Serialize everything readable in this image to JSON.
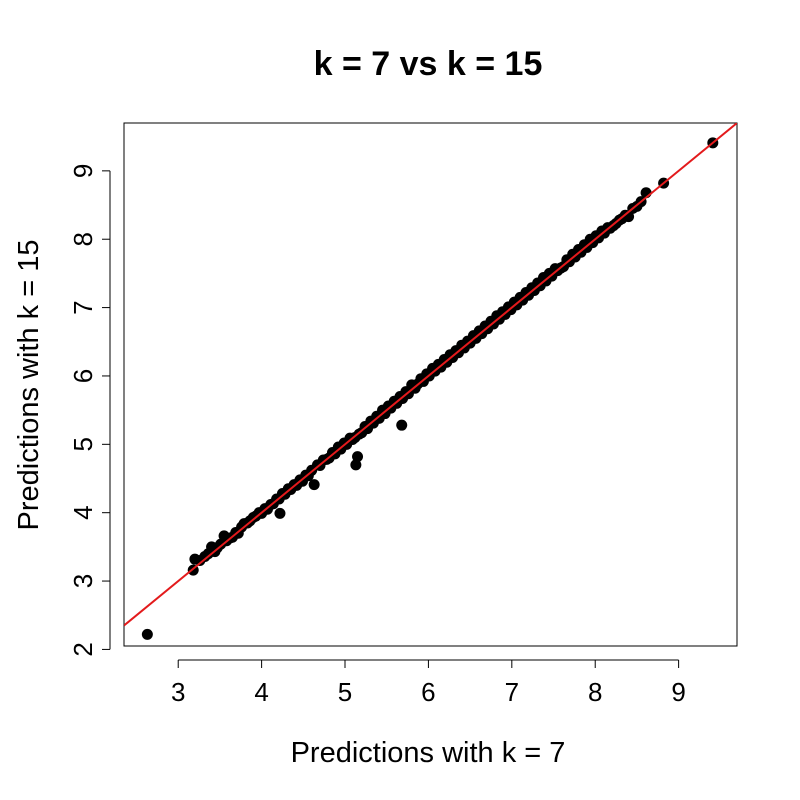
{
  "chart_data": {
    "type": "scatter",
    "title": "k = 7 vs k = 15",
    "xlabel": "Predictions with k = 7",
    "ylabel": "Predictions with k = 15",
    "xlim": [
      2.35,
      9.7
    ],
    "ylim": [
      2.05,
      9.7
    ],
    "x_ticks": [
      3,
      4,
      5,
      6,
      7,
      8,
      9
    ],
    "y_ticks": [
      2,
      3,
      4,
      5,
      6,
      7,
      8,
      9
    ],
    "x_tick_labels": [
      "3",
      "4",
      "5",
      "6",
      "7",
      "8",
      "9"
    ],
    "y_tick_labels": [
      "2",
      "3",
      "4",
      "5",
      "6",
      "7",
      "8",
      "9"
    ],
    "grid": false,
    "point_color": "#000000",
    "reference_line": {
      "slope": 1,
      "intercept": 0,
      "color": "#e31a1c"
    },
    "series": [
      {
        "x": [
          2.63,
          3.18,
          3.2,
          3.26,
          3.32,
          3.36,
          3.4,
          3.44,
          3.47,
          3.51,
          3.55,
          3.58,
          3.62,
          3.65,
          3.69,
          3.72,
          3.76,
          3.79,
          3.83,
          3.86,
          3.9,
          3.93,
          3.97,
          4.0,
          4.04,
          4.07,
          4.11,
          4.14,
          4.18,
          4.21,
          4.22,
          4.25,
          4.28,
          4.32,
          4.35,
          4.39,
          4.42,
          4.46,
          4.49,
          4.53,
          4.56,
          4.6,
          4.63,
          4.67,
          4.7,
          4.74,
          4.78,
          4.81,
          4.85,
          4.88,
          4.92,
          4.95,
          4.99,
          5.02,
          5.06,
          5.09,
          5.12,
          5.13,
          5.15,
          5.17,
          5.2,
          5.24,
          5.27,
          5.31,
          5.34,
          5.38,
          5.41,
          5.45,
          5.48,
          5.52,
          5.55,
          5.59,
          5.62,
          5.66,
          5.68,
          5.69,
          5.73,
          5.76,
          5.8,
          5.84,
          5.87,
          5.91,
          5.94,
          5.98,
          6.01,
          6.05,
          6.08,
          6.12,
          6.15,
          6.19,
          6.22,
          6.26,
          6.29,
          6.33,
          6.36,
          6.4,
          6.43,
          6.47,
          6.5,
          6.54,
          6.57,
          6.61,
          6.64,
          6.68,
          6.71,
          6.75,
          6.78,
          6.82,
          6.85,
          6.89,
          6.92,
          6.96,
          6.99,
          7.03,
          7.06,
          7.1,
          7.13,
          7.17,
          7.2,
          7.24,
          7.27,
          7.31,
          7.34,
          7.38,
          7.41,
          7.45,
          7.48,
          7.52,
          7.55,
          7.59,
          7.62,
          7.66,
          7.69,
          7.73,
          7.76,
          7.8,
          7.83,
          7.87,
          7.9,
          7.94,
          7.97,
          8.01,
          8.04,
          8.08,
          8.11,
          8.15,
          8.18,
          8.22,
          8.25,
          8.29,
          8.32,
          8.36,
          8.4,
          8.45,
          8.5,
          8.55,
          8.61,
          8.82,
          9.41
        ],
        "y": [
          2.22,
          3.16,
          3.32,
          3.3,
          3.36,
          3.4,
          3.5,
          3.43,
          3.49,
          3.54,
          3.66,
          3.59,
          3.63,
          3.64,
          3.71,
          3.7,
          3.79,
          3.84,
          3.85,
          3.88,
          3.93,
          3.95,
          4.0,
          3.99,
          4.06,
          4.05,
          4.12,
          4.13,
          4.2,
          4.2,
          3.99,
          4.28,
          4.27,
          4.35,
          4.34,
          4.41,
          4.4,
          4.48,
          4.46,
          4.55,
          4.54,
          4.62,
          4.41,
          4.7,
          4.69,
          4.77,
          4.78,
          4.8,
          4.88,
          4.86,
          4.96,
          4.93,
          5.02,
          5.0,
          5.09,
          5.07,
          5.1,
          4.7,
          4.82,
          5.15,
          5.17,
          5.26,
          5.23,
          5.34,
          5.31,
          5.41,
          5.38,
          5.5,
          5.45,
          5.56,
          5.53,
          5.63,
          5.6,
          5.7,
          5.28,
          5.67,
          5.77,
          5.74,
          5.87,
          5.82,
          5.88,
          5.96,
          5.92,
          6.03,
          6.0,
          6.11,
          6.07,
          6.17,
          6.13,
          6.24,
          6.2,
          6.31,
          6.27,
          6.37,
          6.34,
          6.45,
          6.41,
          6.51,
          6.48,
          6.59,
          6.55,
          6.66,
          6.62,
          6.73,
          6.69,
          6.8,
          6.76,
          6.88,
          6.83,
          6.94,
          6.9,
          7.01,
          6.97,
          7.08,
          7.04,
          7.15,
          7.11,
          7.22,
          7.18,
          7.29,
          7.25,
          7.36,
          7.32,
          7.44,
          7.39,
          7.5,
          7.46,
          7.57,
          7.54,
          7.58,
          7.6,
          7.7,
          7.67,
          7.78,
          7.74,
          7.85,
          7.81,
          7.92,
          7.88,
          8.0,
          7.95,
          8.05,
          8.02,
          8.12,
          8.09,
          8.17,
          8.16,
          8.2,
          8.23,
          8.28,
          8.3,
          8.35,
          8.33,
          8.45,
          8.48,
          8.55,
          8.68,
          8.82,
          9.41
        ]
      }
    ]
  }
}
